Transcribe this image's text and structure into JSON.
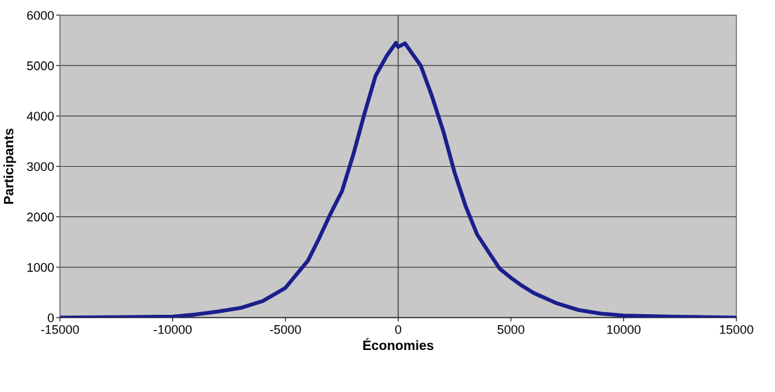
{
  "chart_data": {
    "type": "line",
    "xlabel": "Économies",
    "ylabel": "Participants",
    "x": [
      -15000,
      -12000,
      -10000,
      -9000,
      -8000,
      -7000,
      -6000,
      -5000,
      -4500,
      -4000,
      -3500,
      -3000,
      -2500,
      -2000,
      -1500,
      -1000,
      -500,
      -100,
      0,
      300,
      1000,
      1500,
      2000,
      2500,
      3000,
      3500,
      4000,
      4500,
      5000,
      5500,
      6000,
      7000,
      8000,
      9000,
      10000,
      12000,
      15000
    ],
    "series": [
      {
        "color": "#1a1f8c",
        "values": [
          0,
          10,
          20,
          60,
          120,
          190,
          330,
          590,
          860,
          1130,
          1580,
          2060,
          2500,
          3220,
          4040,
          4800,
          5200,
          5450,
          5370,
          5440,
          5000,
          4390,
          3700,
          2880,
          2200,
          1650,
          1310,
          970,
          790,
          630,
          490,
          290,
          150,
          80,
          40,
          20,
          0
        ]
      }
    ],
    "xlim": [
      -15000,
      15000
    ],
    "xticks": [
      -15000,
      -10000,
      -5000,
      0,
      5000,
      10000,
      15000
    ],
    "ylim": [
      0,
      6000
    ],
    "yticks": [
      0,
      1000,
      2000,
      3000,
      4000,
      5000,
      6000
    ],
    "ref_lines": [
      {
        "axis": "x",
        "value": 0,
        "color": "#404040"
      }
    ],
    "grid": "y",
    "legend": false,
    "marker": "none",
    "line_style": "solid"
  }
}
